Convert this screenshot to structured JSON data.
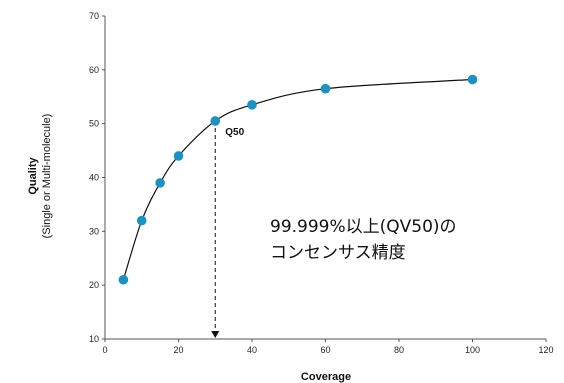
{
  "chart_data": {
    "type": "scatter",
    "xlabel": "Coverage",
    "ylabel": "Quality",
    "ylabel_sub": "(Single or Multi-molecule)",
    "xlim": [
      0,
      120
    ],
    "ylim": [
      10,
      70
    ],
    "x_ticks": [
      0,
      20,
      40,
      60,
      80,
      100,
      120
    ],
    "y_ticks": [
      10,
      20,
      30,
      40,
      50,
      60,
      70
    ],
    "grid": false,
    "series": [
      {
        "x": [
          5,
          10,
          15,
          20,
          30,
          40,
          60,
          100
        ],
        "y": [
          21,
          32,
          39,
          44,
          50.5,
          53.5,
          56.5,
          58.2
        ],
        "color": "#1a93c3"
      }
    ],
    "curve_color": "#111111",
    "reference_line": {
      "x": 30,
      "y": 50.5,
      "style": "dashed",
      "color": "#111111"
    },
    "annotations": [
      {
        "text": "Q50",
        "x": 30,
        "y": 50.5
      },
      {
        "text": "99.999%以上(QV50)の"
      },
      {
        "text": "コンセンサス精度"
      }
    ]
  }
}
